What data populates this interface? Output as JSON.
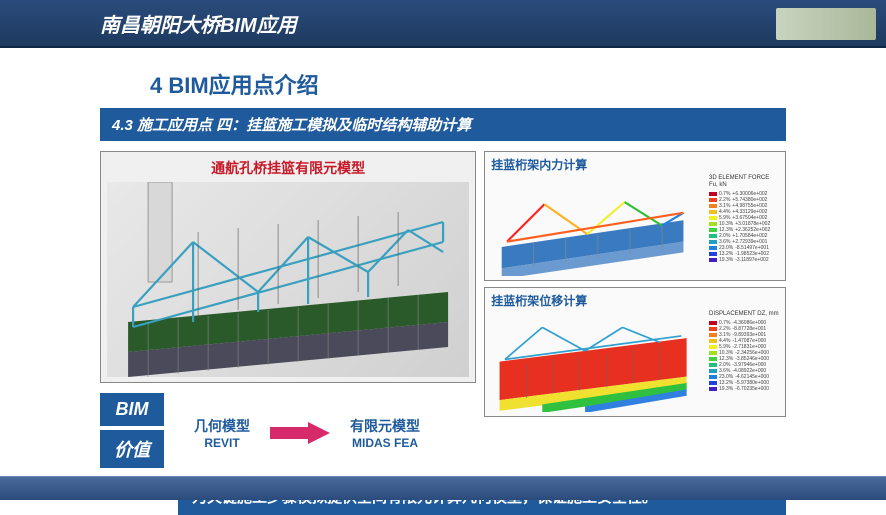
{
  "header": {
    "title": "南昌朝阳大桥BIM应用"
  },
  "section": {
    "number_title": "4  BIM应用点介绍",
    "subtitle": "4.3 施工应用点 四：挂篮施工模拟及临时结构辅助计算"
  },
  "left_panel": {
    "title": "通航孔桥挂篮有限元模型",
    "truss_color": "#3aa0c0",
    "base_color_top": "#2a5a2a",
    "base_color_bottom": "#4a4a5a",
    "pillar_color": "#d8d8d8"
  },
  "right_top": {
    "title": "挂蓝桁架内力计算",
    "legend_title": "3D ELEMENT FORCE\nFu, kN",
    "deck_colors": [
      "#3a7ac0",
      "#6a9ad0"
    ],
    "truss_colors": [
      "#ff2020",
      "#ffb020",
      "#f0f030",
      "#30c030",
      "#2080e0"
    ]
  },
  "right_bottom": {
    "title": "挂蓝桁架位移计算",
    "legend_title": "DISPLACEMENT\nDZ, mm",
    "body_color": "#e83020",
    "truss_color": "#30a0d0",
    "deck_colors": [
      "#f0e030",
      "#30c040",
      "#3080e0"
    ]
  },
  "fea_legend": {
    "colors": [
      "#c00020",
      "#f04020",
      "#f08020",
      "#f0c020",
      "#f0f020",
      "#a0e020",
      "#40d040",
      "#20c080",
      "#20a0c0",
      "#2080e0",
      "#2040e0",
      "#4020c0"
    ],
    "percents": [
      "0.7%",
      "2.2%",
      "3.1%",
      "4.4%",
      "5.9%",
      "10.3%",
      "12.3%",
      "2.0%",
      "3.6%",
      "23.0%",
      "13.2%",
      "19.3%"
    ],
    "force_vals": [
      "+6.30006e+002",
      "+5.74380e+002",
      "+4.98755e+002",
      "+4.33129e+002",
      "+3.67504e+002",
      "+3.01878e+002",
      "+2.36252e+002",
      "+1.70584e+002",
      "+2.72939e+001",
      "-8.51497e+001",
      "-1.98523e+002",
      "-3.11897e+002"
    ],
    "disp_vals": [
      "-4.36086e+000",
      "-8.87728e+001",
      "-9.89393e+001",
      "-1.47087e+000",
      "-2.71831e+000",
      "-2.34256e+000",
      "-3.85246e+000",
      "-3.97946e+000",
      "-4.08922e+000",
      "-4.62145e+000",
      "-5.97380e+000",
      "-6.70235e+000"
    ]
  },
  "flow": {
    "bim_label": "BIM",
    "value_label": "价值",
    "left_top": "几何模型",
    "left_bottom": "REVIT",
    "right_top": "有限元模型",
    "right_bottom": "MIDAS FEA",
    "arrow_color": "#d62a6a"
  },
  "conclusion": "为关键施工步骤模拟提供空间有限元计算几何模型，保证施工安全性。",
  "colors": {
    "primary": "#1e5a9c",
    "accent_red": "#c81828"
  }
}
